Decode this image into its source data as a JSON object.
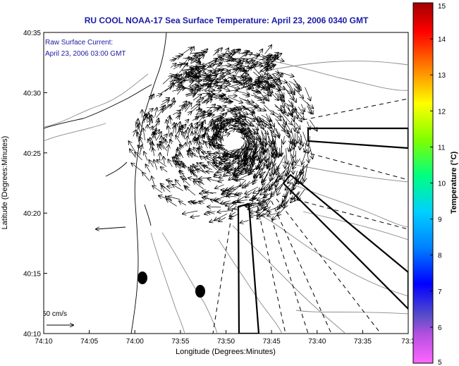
{
  "title": "RU COOL  NOAA-17  Sea Surface Temperature:  April 23, 2006 0340 GMT",
  "annotation": {
    "line1": "Raw Surface Current:",
    "line2": "April 23, 2006 03:00 GMT"
  },
  "scale_label": "50 cm/s",
  "axes": {
    "xlabel": "Longitude (Degrees:Minutes)",
    "ylabel": "Latitude (Degrees:Minutes)",
    "xticks": [
      "74:10",
      "74:05",
      "74:00",
      "73:55",
      "73:50",
      "73:45",
      "73:40",
      "73:35",
      "73:3"
    ],
    "yticks": [
      "40:35",
      "40:30",
      "40:25",
      "40:20",
      "40:15",
      "40:10"
    ]
  },
  "colorbar": {
    "label": "Temperature (°C)",
    "ticks": [
      "15",
      "14",
      "13",
      "12",
      "11",
      "10",
      "9",
      "8",
      "7",
      "6",
      "5"
    ],
    "min": 5,
    "max": 15
  }
}
